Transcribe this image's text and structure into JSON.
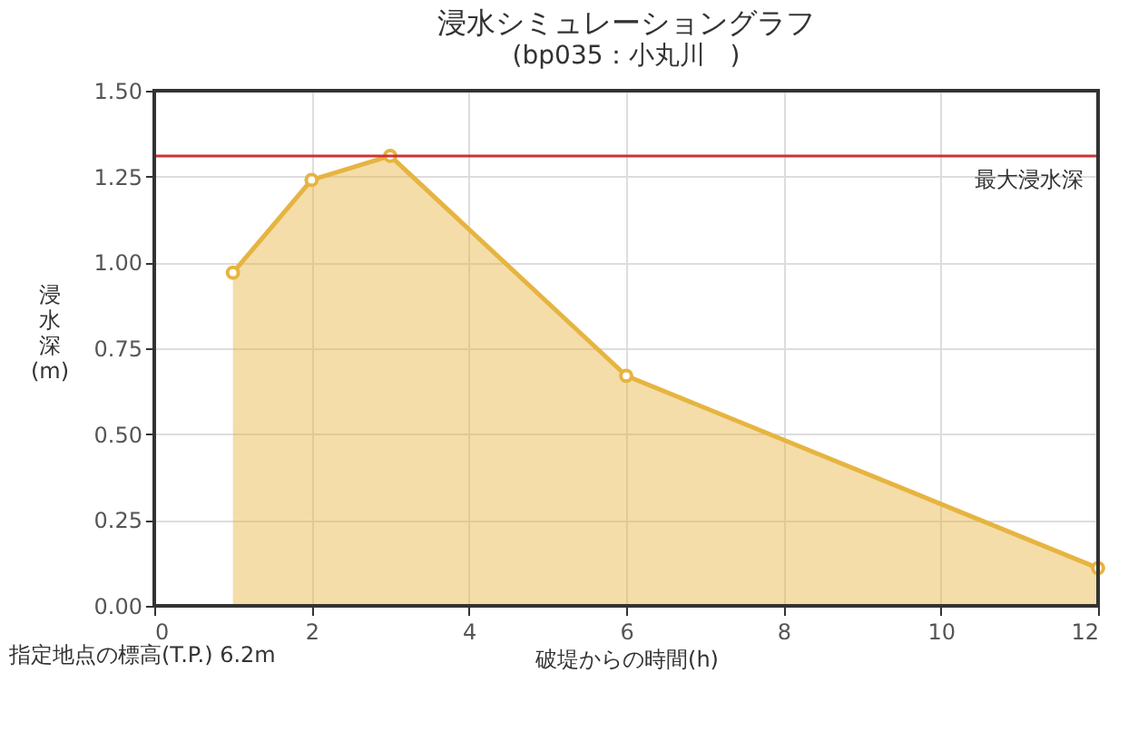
{
  "chart_data": {
    "type": "area",
    "title": "浸水シミュレーショングラフ",
    "subtitle": "(bp035：小丸川　)",
    "xlabel": "破堤からの時間(h)",
    "ylabel": "浸水深(m)",
    "x": [
      1,
      2,
      3,
      6,
      12
    ],
    "series": [
      {
        "color": "#e6b440",
        "values": [
          0.97,
          1.24,
          1.31,
          0.67,
          0.11
        ]
      }
    ],
    "xlim": [
      0,
      12
    ],
    "xticks": [
      0,
      2,
      4,
      6,
      8,
      10,
      12
    ],
    "ylim": [
      0,
      1.5
    ],
    "yticks": [
      {
        "value": 0,
        "label": "0.00"
      },
      {
        "value": 0.25,
        "label": "0.25"
      },
      {
        "value": 0.5,
        "label": "0.50"
      },
      {
        "value": 0.75,
        "label": "0.75"
      },
      {
        "value": 1,
        "label": "1.00"
      },
      {
        "value": 1.25,
        "label": "1.25"
      },
      {
        "value": 1.5,
        "label": "1.50"
      }
    ],
    "ref_lines": [
      {
        "axis": "y",
        "value": 1.31,
        "label": "最大浸水深",
        "color": "#cc3333"
      }
    ],
    "annotations": [
      "指定地点の標高(T.P.) 6.2m"
    ],
    "grid": true,
    "marker": "circle"
  }
}
